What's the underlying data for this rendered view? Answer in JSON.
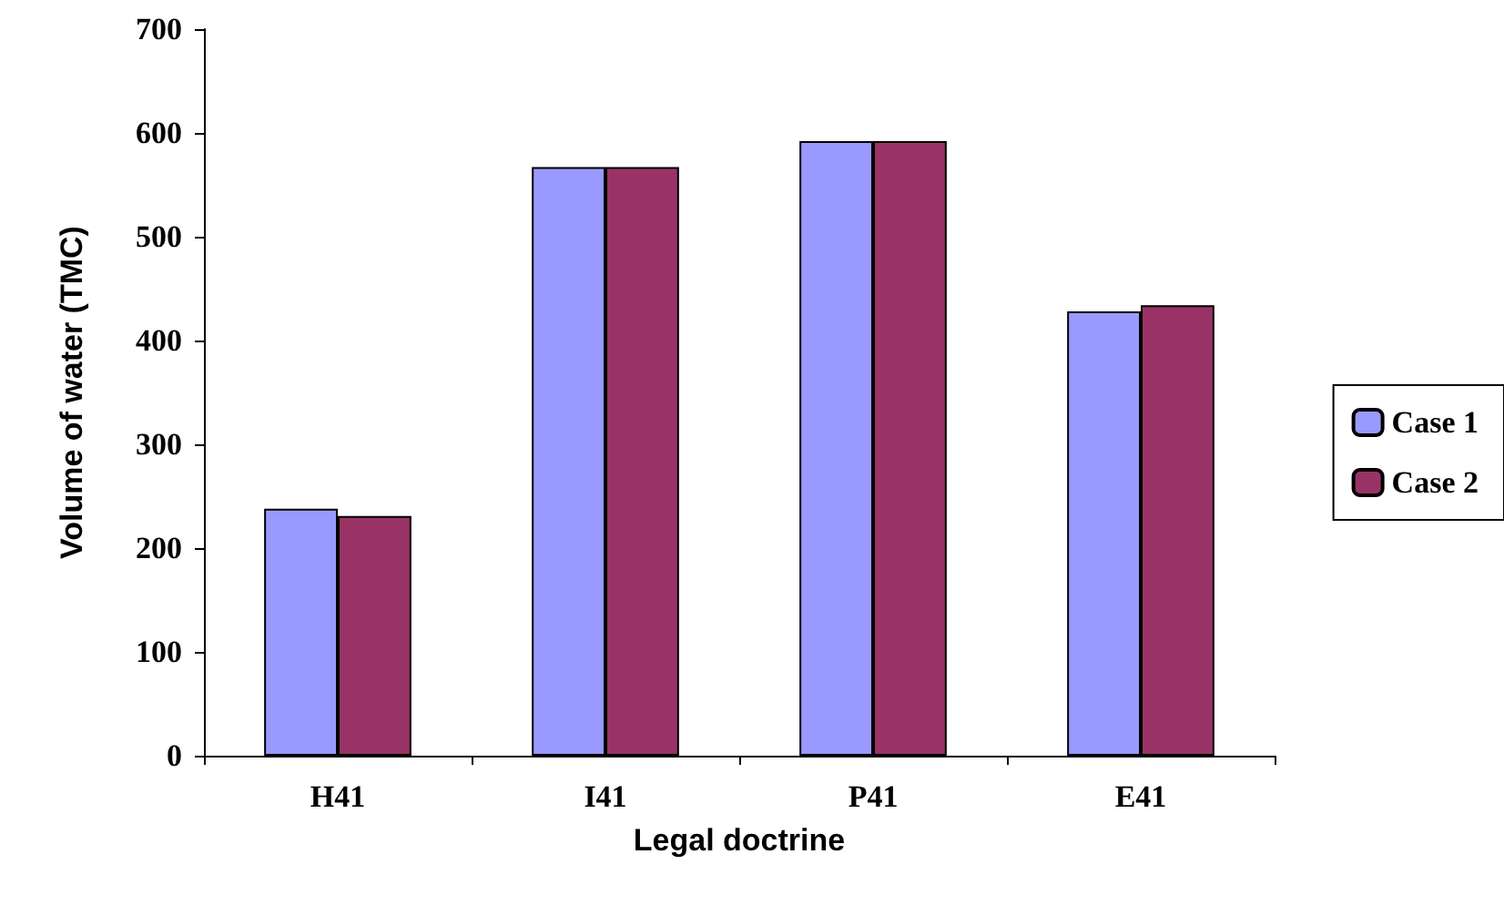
{
  "chart_data": {
    "type": "bar",
    "xlabel": "Legal doctrine",
    "ylabel": "Volume of water (TMC)",
    "categories": [
      "H41",
      "I41",
      "P41",
      "E41"
    ],
    "series": [
      {
        "name": "Case 1",
        "color": "#9999ff",
        "values": [
          238,
          567,
          592,
          428
        ]
      },
      {
        "name": "Case 2",
        "color": "#993366",
        "values": [
          231,
          567,
          592,
          434
        ]
      }
    ],
    "ylim": [
      0,
      700
    ],
    "yticks": [
      0,
      100,
      200,
      300,
      400,
      500,
      600,
      700
    ],
    "grid": false,
    "legend": "right"
  }
}
